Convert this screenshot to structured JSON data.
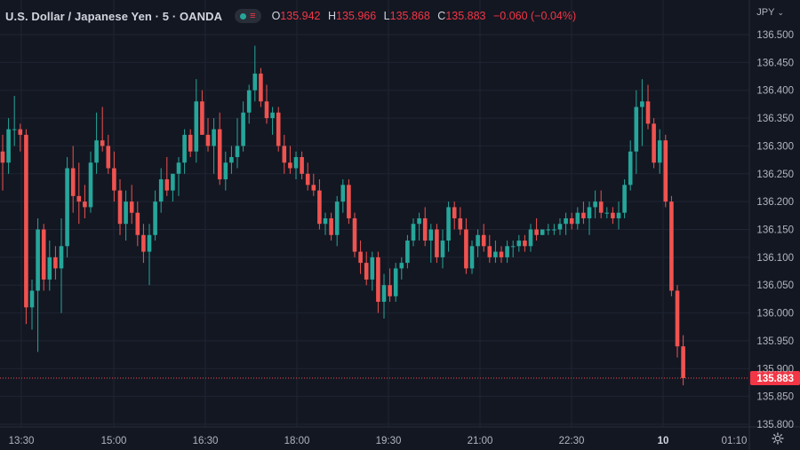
{
  "header": {
    "symbol": "U.S. Dollar / Japanese Yen · 5 · OANDA",
    "ohlc": [
      {
        "key": "O",
        "value": "135.942"
      },
      {
        "key": "H",
        "value": "135.966"
      },
      {
        "key": "L",
        "value": "135.868"
      },
      {
        "key": "C",
        "value": "135.883"
      }
    ],
    "change": "−0.060 (−0.04%)",
    "currency": "JPY"
  },
  "colors": {
    "background": "#131722",
    "grid": "#1f2433",
    "up": "#26a69a",
    "down": "#ef5350",
    "text": "#d1d4dc",
    "price_tag": "#f23645"
  },
  "icons": [
    "status-dot-icon",
    "bars-icon",
    "chevron-down-icon",
    "settings-icon"
  ],
  "chart_data": {
    "type": "candlestick",
    "title": "U.S. Dollar / Japanese Yen · 5 · OANDA",
    "interval": "5 min",
    "ylim": [
      135.8,
      136.5
    ],
    "y_ticks": [
      "136.500",
      "136.450",
      "136.400",
      "136.350",
      "136.300",
      "136.250",
      "136.200",
      "136.150",
      "136.100",
      "136.050",
      "136.000",
      "135.950",
      "135.900",
      "135.850",
      "135.800"
    ],
    "x_ticks": [
      "13:30",
      "15:00",
      "16:30",
      "18:00",
      "19:30",
      "21:00",
      "22:30",
      "10",
      "01:10"
    ],
    "last_price": 135.883,
    "last_price_label": "135.883",
    "grid": true,
    "candles": [
      [
        136.29,
        136.32,
        136.22,
        136.27
      ],
      [
        136.27,
        136.35,
        136.25,
        136.33
      ],
      [
        136.33,
        136.39,
        136.3,
        136.33
      ],
      [
        136.33,
        136.34,
        136.29,
        136.32
      ],
      [
        136.32,
        136.33,
        135.98,
        136.01
      ],
      [
        136.01,
        136.06,
        135.97,
        136.04
      ],
      [
        136.04,
        136.17,
        135.93,
        136.15
      ],
      [
        136.15,
        136.16,
        136.04,
        136.06
      ],
      [
        136.06,
        136.13,
        136.04,
        136.1
      ],
      [
        136.1,
        136.12,
        136.06,
        136.08
      ],
      [
        136.08,
        136.17,
        136.0,
        136.12
      ],
      [
        136.12,
        136.28,
        136.1,
        136.26
      ],
      [
        136.26,
        136.3,
        136.18,
        136.21
      ],
      [
        136.21,
        136.27,
        136.16,
        136.2
      ],
      [
        136.2,
        136.23,
        136.17,
        136.19
      ],
      [
        136.19,
        136.29,
        136.18,
        136.27
      ],
      [
        136.27,
        136.36,
        136.25,
        136.31
      ],
      [
        136.31,
        136.37,
        136.29,
        136.3
      ],
      [
        136.3,
        136.32,
        136.25,
        136.26
      ],
      [
        136.26,
        136.29,
        136.2,
        136.22
      ],
      [
        136.22,
        136.24,
        136.14,
        136.16
      ],
      [
        136.16,
        136.22,
        136.13,
        136.2
      ],
      [
        136.2,
        136.23,
        136.16,
        136.18
      ],
      [
        136.18,
        136.2,
        136.12,
        136.14
      ],
      [
        136.14,
        136.16,
        136.09,
        136.11
      ],
      [
        136.11,
        136.16,
        136.05,
        136.14
      ],
      [
        136.14,
        136.22,
        136.13,
        136.2
      ],
      [
        136.2,
        136.26,
        136.18,
        136.24
      ],
      [
        136.24,
        136.28,
        136.21,
        136.22
      ],
      [
        136.22,
        136.25,
        136.2,
        136.25
      ],
      [
        136.25,
        136.28,
        136.21,
        136.27
      ],
      [
        136.27,
        136.33,
        136.25,
        136.32
      ],
      [
        136.32,
        136.33,
        136.28,
        136.29
      ],
      [
        136.29,
        136.42,
        136.27,
        136.38
      ],
      [
        136.38,
        136.4,
        136.32,
        136.32
      ],
      [
        136.32,
        136.35,
        136.29,
        136.3
      ],
      [
        136.3,
        136.35,
        136.25,
        136.33
      ],
      [
        136.33,
        136.36,
        136.23,
        136.24
      ],
      [
        136.24,
        136.29,
        136.22,
        136.27
      ],
      [
        136.27,
        136.3,
        136.25,
        136.28
      ],
      [
        136.28,
        136.35,
        136.26,
        136.3
      ],
      [
        136.3,
        136.38,
        136.29,
        136.36
      ],
      [
        136.36,
        136.41,
        136.34,
        136.4
      ],
      [
        136.4,
        136.48,
        136.38,
        136.43
      ],
      [
        136.43,
        136.44,
        136.37,
        136.38
      ],
      [
        136.38,
        136.41,
        136.34,
        136.35
      ],
      [
        136.35,
        136.37,
        136.32,
        136.36
      ],
      [
        136.36,
        136.37,
        136.29,
        136.3
      ],
      [
        136.3,
        136.32,
        136.25,
        136.27
      ],
      [
        136.27,
        136.3,
        136.25,
        136.26
      ],
      [
        136.26,
        136.29,
        136.24,
        136.28
      ],
      [
        136.28,
        136.29,
        136.24,
        136.25
      ],
      [
        136.25,
        136.27,
        136.22,
        136.23
      ],
      [
        136.23,
        136.25,
        136.21,
        136.22
      ],
      [
        136.22,
        136.24,
        136.15,
        136.16
      ],
      [
        136.16,
        136.18,
        136.14,
        136.17
      ],
      [
        136.17,
        136.18,
        136.13,
        136.14
      ],
      [
        136.14,
        136.21,
        136.12,
        136.2
      ],
      [
        136.2,
        136.24,
        136.18,
        136.23
      ],
      [
        136.23,
        136.24,
        136.16,
        136.17
      ],
      [
        136.17,
        136.18,
        136.1,
        136.11
      ],
      [
        136.11,
        136.13,
        136.07,
        136.09
      ],
      [
        136.09,
        136.11,
        136.05,
        136.06
      ],
      [
        136.06,
        136.11,
        136.04,
        136.1
      ],
      [
        136.1,
        136.11,
        136.0,
        136.02
      ],
      [
        136.02,
        136.07,
        135.99,
        136.05
      ],
      [
        136.05,
        136.08,
        136.02,
        136.03
      ],
      [
        136.03,
        136.09,
        136.02,
        136.08
      ],
      [
        136.08,
        136.1,
        136.06,
        136.09
      ],
      [
        136.09,
        136.14,
        136.08,
        136.13
      ],
      [
        136.13,
        136.17,
        136.12,
        136.16
      ],
      [
        136.16,
        136.18,
        136.13,
        136.17
      ],
      [
        136.17,
        136.19,
        136.12,
        136.13
      ],
      [
        136.13,
        136.16,
        136.09,
        136.15
      ],
      [
        136.15,
        136.16,
        136.09,
        136.1
      ],
      [
        136.1,
        136.15,
        136.08,
        136.13
      ],
      [
        136.13,
        136.2,
        136.11,
        136.19
      ],
      [
        136.19,
        136.2,
        136.15,
        136.17
      ],
      [
        136.17,
        136.19,
        136.14,
        136.15
      ],
      [
        136.15,
        136.17,
        136.07,
        136.08
      ],
      [
        136.08,
        136.13,
        136.07,
        136.12
      ],
      [
        136.12,
        136.15,
        136.1,
        136.14
      ],
      [
        136.14,
        136.16,
        136.11,
        136.12
      ],
      [
        136.12,
        136.14,
        136.09,
        136.1
      ],
      [
        136.1,
        136.13,
        136.09,
        136.11
      ],
      [
        136.11,
        136.12,
        136.09,
        136.1
      ],
      [
        136.1,
        136.13,
        136.09,
        136.12
      ],
      [
        136.12,
        136.13,
        136.1,
        136.12
      ],
      [
        136.12,
        136.14,
        136.11,
        136.13
      ],
      [
        136.13,
        136.14,
        136.11,
        136.12
      ],
      [
        136.12,
        136.16,
        136.11,
        136.15
      ],
      [
        136.15,
        136.17,
        136.13,
        136.14
      ],
      [
        136.14,
        136.15,
        136.14,
        136.15
      ],
      [
        136.15,
        136.16,
        136.14,
        136.15
      ],
      [
        136.15,
        136.16,
        136.14,
        136.15
      ],
      [
        136.15,
        136.17,
        136.14,
        136.16
      ],
      [
        136.16,
        136.18,
        136.14,
        136.17
      ],
      [
        136.17,
        136.18,
        136.15,
        136.16
      ],
      [
        136.16,
        136.19,
        136.15,
        136.18
      ],
      [
        136.18,
        136.2,
        136.16,
        136.17
      ],
      [
        136.17,
        136.2,
        136.14,
        136.19
      ],
      [
        136.19,
        136.22,
        136.17,
        136.2
      ],
      [
        136.2,
        136.22,
        136.17,
        136.18
      ],
      [
        136.18,
        136.19,
        136.17,
        136.18
      ],
      [
        136.18,
        136.19,
        136.16,
        136.17
      ],
      [
        136.17,
        136.2,
        136.15,
        136.18
      ],
      [
        136.18,
        136.24,
        136.17,
        136.23
      ],
      [
        136.23,
        136.31,
        136.22,
        136.29
      ],
      [
        136.29,
        136.4,
        136.25,
        136.37
      ],
      [
        136.37,
        136.42,
        136.3,
        136.38
      ],
      [
        136.38,
        136.41,
        136.33,
        136.34
      ],
      [
        136.34,
        136.35,
        136.26,
        136.27
      ],
      [
        136.27,
        136.33,
        136.25,
        136.31
      ],
      [
        136.31,
        136.32,
        136.19,
        136.2
      ],
      [
        136.2,
        136.21,
        136.03,
        136.04
      ],
      [
        136.04,
        136.05,
        135.92,
        135.94
      ],
      [
        135.94,
        135.96,
        135.87,
        135.883
      ]
    ]
  }
}
